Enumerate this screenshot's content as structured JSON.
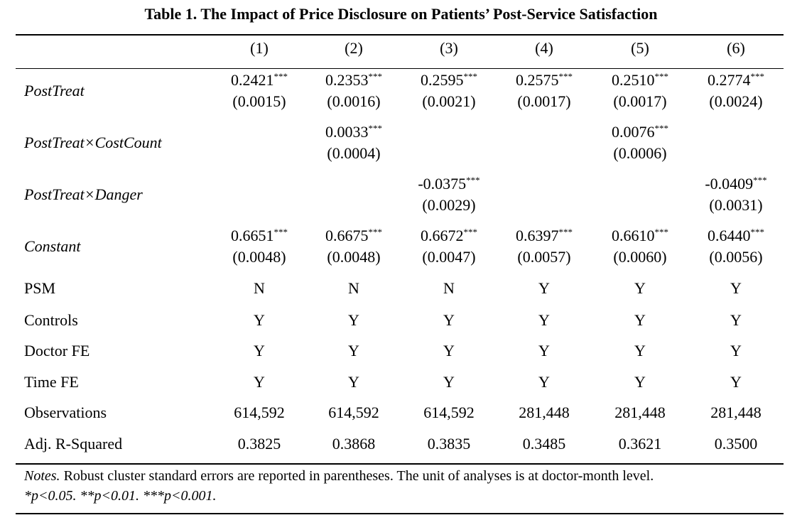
{
  "title": "Table 1. The Impact of Price Disclosure on Patients’ Post-Service Satisfaction",
  "columns": [
    "(1)",
    "(2)",
    "(3)",
    "(4)",
    "(5)",
    "(6)"
  ],
  "coef_rows": [
    {
      "label": "PostTreat",
      "cells": [
        {
          "coef": "0.2421",
          "stars": "***",
          "se": "(0.0015)"
        },
        {
          "coef": "0.2353",
          "stars": "***",
          "se": "(0.0016)"
        },
        {
          "coef": "0.2595",
          "stars": "***",
          "se": "(0.0021)"
        },
        {
          "coef": "0.2575",
          "stars": "***",
          "se": "(0.0017)"
        },
        {
          "coef": "0.2510",
          "stars": "***",
          "se": "(0.0017)"
        },
        {
          "coef": "0.2774",
          "stars": "***",
          "se": "(0.0024)"
        }
      ]
    },
    {
      "label": "PostTreat×CostCount",
      "cells": [
        null,
        {
          "coef": "0.0033",
          "stars": "***",
          "se": "(0.0004)"
        },
        null,
        null,
        {
          "coef": "0.0076",
          "stars": "***",
          "se": "(0.0006)"
        },
        null
      ]
    },
    {
      "label": "PostTreat×Danger",
      "cells": [
        null,
        null,
        {
          "coef": "-0.0375",
          "stars": "***",
          "se": "(0.0029)"
        },
        null,
        null,
        {
          "coef": "-0.0409",
          "stars": "***",
          "se": "(0.0031)"
        }
      ]
    },
    {
      "label": "Constant",
      "cells": [
        {
          "coef": "0.6651",
          "stars": "***",
          "se": "(0.0048)"
        },
        {
          "coef": "0.6675",
          "stars": "***",
          "se": "(0.0048)"
        },
        {
          "coef": "0.6672",
          "stars": "***",
          "se": "(0.0047)"
        },
        {
          "coef": "0.6397",
          "stars": "***",
          "se": "(0.0057)"
        },
        {
          "coef": "0.6610",
          "stars": "***",
          "se": "(0.0060)"
        },
        {
          "coef": "0.6440",
          "stars": "***",
          "se": "(0.0056)"
        }
      ]
    }
  ],
  "plain_rows": [
    {
      "label": "PSM",
      "cells": [
        "N",
        "N",
        "N",
        "Y",
        "Y",
        "Y"
      ]
    },
    {
      "label": "Controls",
      "cells": [
        "Y",
        "Y",
        "Y",
        "Y",
        "Y",
        "Y"
      ]
    },
    {
      "label": "Doctor FE",
      "cells": [
        "Y",
        "Y",
        "Y",
        "Y",
        "Y",
        "Y"
      ]
    },
    {
      "label": "Time FE",
      "cells": [
        "Y",
        "Y",
        "Y",
        "Y",
        "Y",
        "Y"
      ]
    },
    {
      "label": "Observations",
      "cells": [
        "614,592",
        "614,592",
        "614,592",
        "281,448",
        "281,448",
        "281,448"
      ]
    },
    {
      "label": "Adj. R-Squared",
      "cells": [
        "0.3825",
        "0.3868",
        "0.3835",
        "0.3485",
        "0.3621",
        "0.3500"
      ]
    }
  ],
  "notes": {
    "label": "Notes.",
    "text": "Robust cluster standard errors are reported in parentheses. The unit of analyses is at doctor-month level.",
    "significance": "*p<0.05. **p<0.01. ***p<0.001."
  }
}
